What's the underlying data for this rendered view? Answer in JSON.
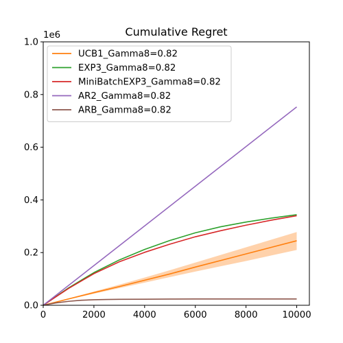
{
  "chart_data": {
    "type": "line",
    "title": "Cumulative Regret",
    "xlabel": "",
    "ylabel": "",
    "y_offset_label": "1e6",
    "xlim": [
      0,
      10500
    ],
    "ylim": [
      0,
      1000000
    ],
    "x_ticks": [
      0,
      2000,
      4000,
      6000,
      8000,
      10000
    ],
    "x_tick_labels": [
      "0",
      "2000",
      "4000",
      "6000",
      "8000",
      "10000"
    ],
    "y_ticks": [
      0,
      200000,
      400000,
      600000,
      800000,
      1000000
    ],
    "y_tick_labels": [
      "0.0",
      "0.2",
      "0.4",
      "0.6",
      "0.8",
      "1.0"
    ],
    "grid": false,
    "legend_position": "upper-left",
    "series": [
      {
        "name": "UCB1_Gamma8=0.82",
        "color": "#ff7f0e",
        "x": [
          0,
          1000,
          2000,
          3000,
          4000,
          5000,
          6000,
          7000,
          8000,
          9000,
          10000
        ],
        "y": [
          0,
          24000,
          48000,
          71000,
          95000,
          119000,
          145000,
          170000,
          195000,
          220000,
          245000
        ],
        "band_lower": [
          0,
          22000,
          44000,
          65000,
          86000,
          107000,
          128000,
          148000,
          168000,
          189000,
          210000
        ],
        "band_upper": [
          0,
          26000,
          52000,
          78000,
          105000,
          133000,
          162000,
          191000,
          220000,
          249000,
          278000
        ]
      },
      {
        "name": "EXP3_Gamma8=0.82",
        "color": "#2ca02c",
        "x": [
          0,
          1000,
          2000,
          3000,
          4000,
          5000,
          6000,
          7000,
          8000,
          9000,
          10000
        ],
        "y": [
          0,
          66000,
          124000,
          172000,
          212000,
          246000,
          275000,
          298000,
          316000,
          331000,
          344000
        ]
      },
      {
        "name": "MiniBatchEXP3_Gamma8=0.82",
        "color": "#d62728",
        "x": [
          0,
          1000,
          2000,
          3000,
          4000,
          5000,
          6000,
          7000,
          8000,
          9000,
          10000
        ],
        "y": [
          0,
          64000,
          120000,
          165000,
          201000,
          232000,
          260000,
          283000,
          304000,
          323000,
          340000
        ]
      },
      {
        "name": "AR2_Gamma8=0.82",
        "color": "#9467bd",
        "x": [
          0,
          10000
        ],
        "y": [
          0,
          753000
        ]
      },
      {
        "name": "ARB_Gamma8=0.82",
        "color": "#8c564b",
        "x": [
          0,
          500,
          1000,
          1500,
          2000,
          2500,
          3000,
          4000,
          5000,
          6000,
          8000,
          10000
        ],
        "y": [
          0,
          9000,
          15000,
          19000,
          21000,
          22000,
          22500,
          23000,
          23500,
          24000,
          24000,
          24000
        ]
      }
    ]
  }
}
